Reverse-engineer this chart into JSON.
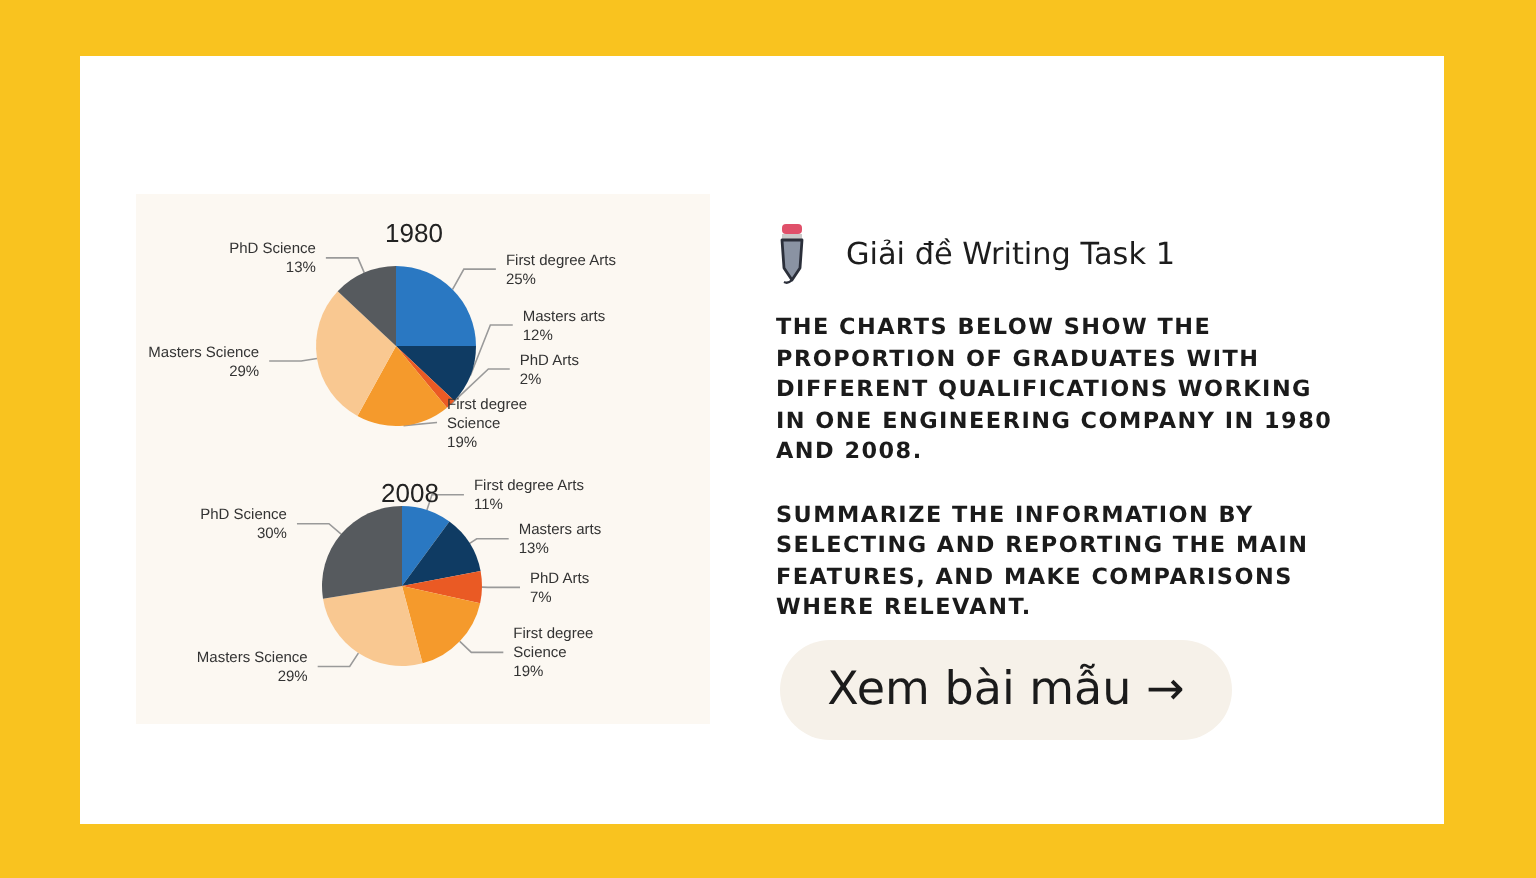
{
  "chart_data": [
    {
      "type": "pie",
      "title": "1980",
      "categories": [
        "First degree Arts",
        "Masters arts",
        "PhD Arts",
        "First degree Science",
        "Masters Science",
        "PhD Science"
      ],
      "values": [
        25,
        12,
        2,
        19,
        29,
        13
      ],
      "value_labels": [
        "25%",
        "12%",
        "2%",
        "19%",
        "29%",
        "13%"
      ],
      "colors": [
        "#2a78c2",
        "#0f3b63",
        "#ea5a24",
        "#f59a2c",
        "#f9c891",
        "#565a5e"
      ]
    },
    {
      "type": "pie",
      "title": "2008",
      "categories": [
        "First degree Arts",
        "Masters arts",
        "PhD Arts",
        "First degree Science",
        "Masters Science",
        "PhD Science"
      ],
      "values": [
        11,
        13,
        7,
        19,
        29,
        30
      ],
      "value_labels": [
        "11%",
        "13%",
        "7%",
        "19%",
        "29%",
        "30%"
      ],
      "colors": [
        "#2a78c2",
        "#0f3b63",
        "#ea5a24",
        "#f59a2c",
        "#f9c891",
        "#565a5e"
      ]
    },
    {
      "type": "other",
      "title": "Giải đề Writing Task 1",
      "annotations": [
        "THE CHARTS BELOW SHOW THE PROPORTION OF GRADUATES WITH DIFFERENT QUALIFICATIONS WORKING IN ONE ENGINEERING COMPANY IN 1980 AND 2008.",
        "SUMMARIZE THE INFORMATION BY SELECTING AND REPORTING THE MAIN FEATURES, AND MAKE COMPARISONS WHERE RELEVANT.",
        "Xem bài mẫu →"
      ]
    }
  ]
}
